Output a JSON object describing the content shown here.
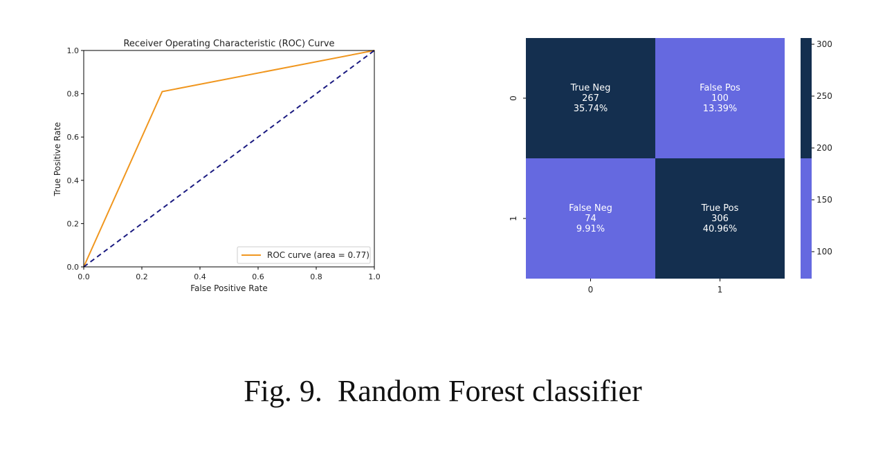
{
  "caption": "Fig. 9.  Random Forest classifier",
  "colors": {
    "dark_cell": "#142f4f",
    "light_cell": "#6569e0",
    "roc_line": "#f0961e",
    "diagonal": "#1a1a80"
  },
  "chart_data": [
    {
      "type": "line",
      "title": "Receiver Operating Characteristic (ROC) Curve",
      "xlabel": "False Positive Rate",
      "ylabel": "True Positive Rate",
      "xlim": [
        0.0,
        1.0
      ],
      "ylim": [
        0.0,
        1.0
      ],
      "x_ticks": [
        "0.0",
        "0.2",
        "0.4",
        "0.6",
        "0.8",
        "1.0"
      ],
      "y_ticks": [
        "0.0",
        "0.2",
        "0.4",
        "0.6",
        "0.8",
        "1.0"
      ],
      "legend_position": "lower-right",
      "grid": false,
      "series": [
        {
          "name": "ROC curve (area = 0.77)",
          "x": [
            0.0,
            0.27,
            1.0
          ],
          "y": [
            0.0,
            0.81,
            1.0
          ]
        },
        {
          "x": [
            0.0,
            1.0
          ],
          "y": [
            0.0,
            1.0
          ],
          "style": "dashed"
        }
      ]
    },
    {
      "type": "heatmap",
      "x_ticks": [
        "0",
        "1"
      ],
      "y_ticks": [
        "0",
        "1"
      ],
      "cells": [
        [
          {
            "label": "True Neg",
            "value": 267,
            "percent": "35.74%"
          },
          {
            "label": "False Pos",
            "value": 100,
            "percent": "13.39%"
          }
        ],
        [
          {
            "label": "False Neg",
            "value": 74,
            "percent": "9.91%"
          },
          {
            "label": "True Pos",
            "value": 306,
            "percent": "40.96%"
          }
        ]
      ],
      "colorbar": {
        "range": [
          74,
          306
        ],
        "threshold": 190,
        "ticks": [
          100,
          150,
          200,
          250,
          300
        ]
      }
    }
  ]
}
